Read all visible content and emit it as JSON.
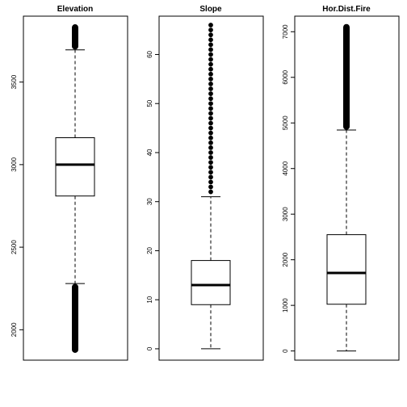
{
  "chart_data": [
    {
      "type": "box",
      "title": "Elevation",
      "yticks": [
        2000,
        2500,
        3000,
        3500
      ],
      "ylim": [
        1855,
        3860
      ],
      "box": {
        "whisker_low": 2280,
        "q1": 2810,
        "median": 3000,
        "q3": 3163,
        "whisker_high": 3695
      },
      "outliers": {
        "low": [
          1860,
          2278
        ],
        "high": [
          3697,
          3850
        ]
      },
      "grid": false
    },
    {
      "type": "box",
      "title": "Slope",
      "yticks": [
        0,
        10,
        20,
        30,
        40,
        50,
        60
      ],
      "ylim": [
        -1,
        66.5
      ],
      "box": {
        "whisker_low": 0,
        "q1": 9,
        "median": 13,
        "q3": 18,
        "whisker_high": 31
      },
      "outliers": {
        "values": [
          32,
          33,
          34,
          35,
          36,
          37,
          38,
          39,
          40,
          41,
          42,
          43,
          44,
          45,
          46,
          47,
          48,
          49,
          50,
          51,
          52,
          53,
          54,
          55,
          56,
          57,
          58,
          59,
          60,
          61,
          62,
          63,
          64,
          65,
          66
        ]
      },
      "grid": false
    },
    {
      "type": "box",
      "title": "Hor.Dist.Fire",
      "yticks": [
        0,
        1000,
        2000,
        3000,
        4000,
        5000,
        6000,
        7000
      ],
      "ylim": [
        -60,
        7200
      ],
      "box": {
        "whisker_low": 0,
        "q1": 1025,
        "median": 1710,
        "q3": 2550,
        "whisker_high": 4845
      },
      "outliers": {
        "high": [
          4850,
          7170
        ]
      },
      "grid": false
    }
  ]
}
